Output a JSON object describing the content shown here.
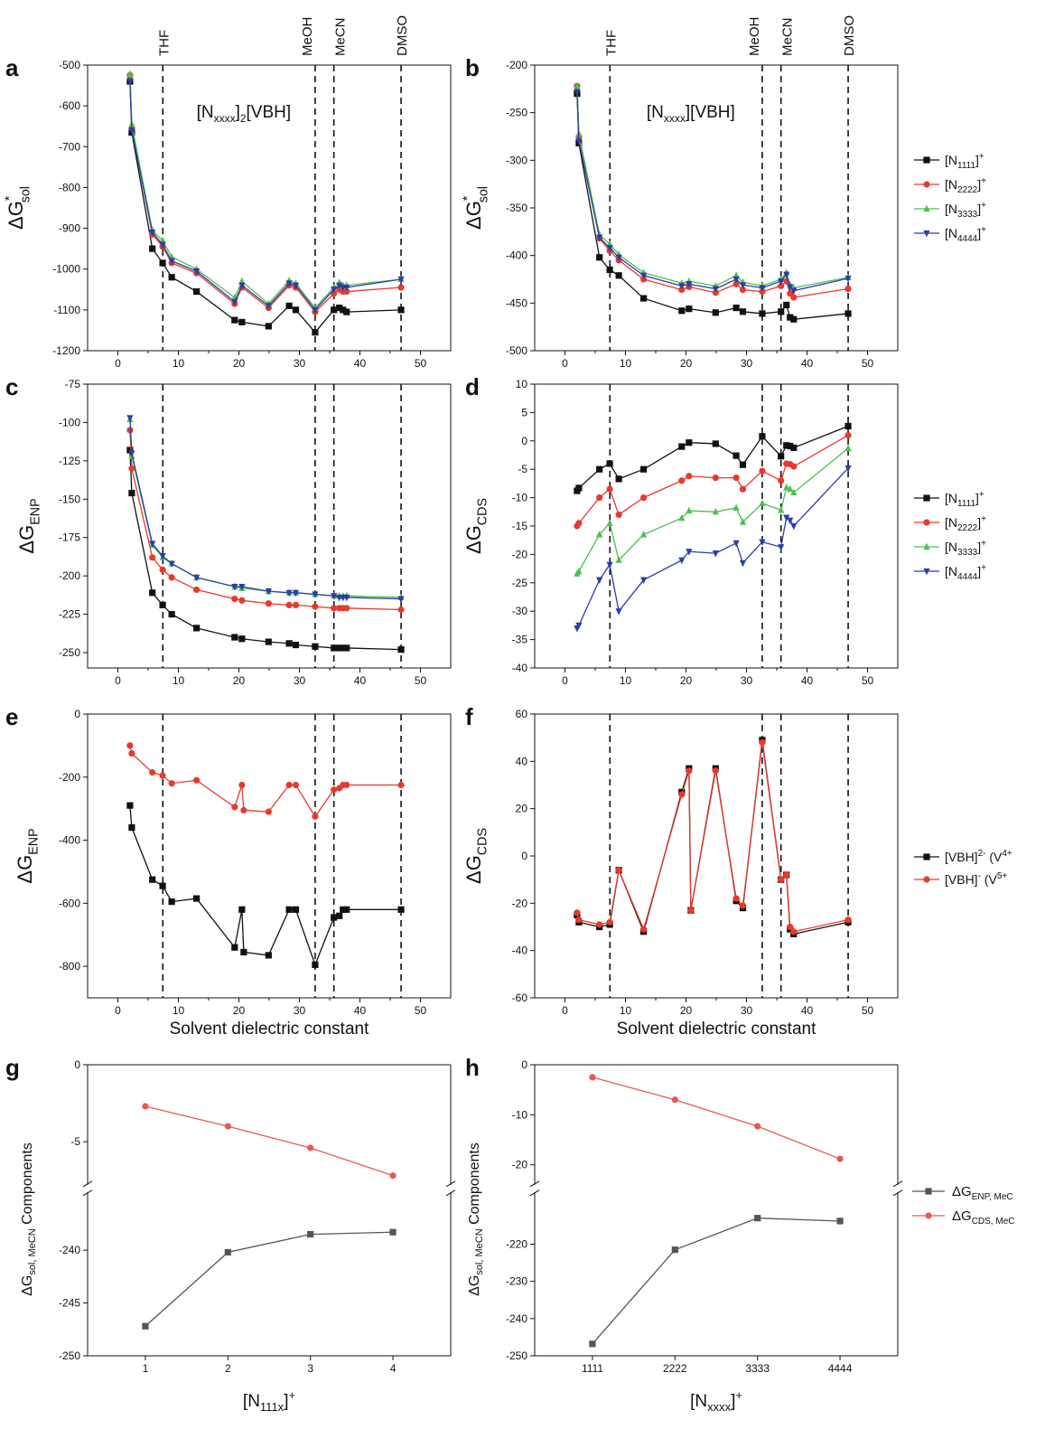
{
  "solvents": {
    "labels": [
      "THF",
      "MeOH",
      "MeCN",
      "DMSO"
    ],
    "eps": [
      7.43,
      32.6,
      35.7,
      46.8
    ]
  },
  "legends": {
    "cations": [
      "[N1111]+",
      "[N2222]+",
      "[N3333]+",
      "[N4444]+"
    ],
    "anions": [
      "[VBH]2- (V4+",
      "[VBH]- (V5+"
    ],
    "components": [
      "ΔGENP, MeC",
      "ΔGCDS, MeC"
    ]
  },
  "colors": {
    "black": "#111111",
    "red": "#e8392c",
    "green": "#4cc050",
    "blue": "#2b3ea6",
    "gray": "#555555",
    "salmon": "#e85a50"
  },
  "chart_data": [
    {
      "panel": "a",
      "type": "line",
      "annotation": "[Nxxxx]2[VBH]",
      "ylabel": "ΔG*sol",
      "xlim": [
        -5,
        55
      ],
      "ylim": [
        -1200,
        -500
      ],
      "xticks": [
        0,
        10,
        20,
        30,
        40,
        50
      ],
      "yticks": [
        -1200,
        -1100,
        -1000,
        -900,
        -800,
        -700,
        -600,
        -500
      ],
      "series": [
        {
          "name": "[N1111]+",
          "x": [
            2.0,
            2.3,
            5.7,
            7.4,
            8.9,
            13,
            19.3,
            20.5,
            24.9,
            28.3,
            29.4,
            32.6,
            35.7,
            36.6,
            37.2,
            37.8,
            46.8
          ],
          "y": [
            -540,
            -665,
            -950,
            -985,
            -1020,
            -1055,
            -1125,
            -1130,
            -1140,
            -1090,
            -1100,
            -1155,
            -1100,
            -1095,
            -1100,
            -1105,
            -1100
          ]
        },
        {
          "name": "[N2222]+",
          "x": [
            2.0,
            2.3,
            5.7,
            7.4,
            8.9,
            13,
            19.3,
            20.5,
            24.9,
            28.3,
            29.4,
            32.6,
            35.7,
            36.6,
            37.2,
            37.8,
            46.8
          ],
          "y": [
            -525,
            -655,
            -915,
            -945,
            -985,
            -1010,
            -1085,
            -1045,
            -1095,
            -1040,
            -1045,
            -1105,
            -1060,
            -1050,
            -1055,
            -1055,
            -1045
          ]
        },
        {
          "name": "[N3333]+",
          "x": [
            2.0,
            2.3,
            5.7,
            7.4,
            8.9,
            13,
            19.3,
            20.5,
            24.9,
            28.3,
            29.4,
            32.6,
            35.7,
            36.6,
            37.2,
            37.8,
            46.8
          ],
          "y": [
            -522,
            -645,
            -905,
            -930,
            -970,
            -1000,
            -1070,
            -1030,
            -1085,
            -1028,
            -1035,
            -1095,
            -1045,
            -1033,
            -1040,
            -1040,
            -1025
          ]
        },
        {
          "name": "[N4444]+",
          "x": [
            2.0,
            2.3,
            5.7,
            7.4,
            8.9,
            13,
            19.3,
            20.5,
            24.9,
            28.3,
            29.4,
            32.6,
            35.7,
            36.6,
            37.2,
            37.8,
            46.8
          ],
          "y": [
            -540,
            -660,
            -910,
            -940,
            -980,
            -1005,
            -1080,
            -1040,
            -1090,
            -1035,
            -1040,
            -1100,
            -1050,
            -1040,
            -1045,
            -1045,
            -1025
          ]
        }
      ]
    },
    {
      "panel": "b",
      "type": "line",
      "annotation": "[Nxxxx][VBH]",
      "ylabel": "ΔG*sol",
      "xlim": [
        -5,
        55
      ],
      "ylim": [
        -500,
        -200
      ],
      "xticks": [
        0,
        10,
        20,
        30,
        40,
        50
      ],
      "yticks": [
        -500,
        -450,
        -400,
        -350,
        -300,
        -250,
        -200
      ],
      "series": [
        {
          "name": "[N1111]+",
          "x": [
            2.0,
            2.3,
            5.7,
            7.4,
            8.9,
            13,
            19.3,
            20.5,
            24.9,
            28.3,
            29.4,
            32.6,
            35.7,
            36.6,
            37.2,
            37.8,
            46.8
          ],
          "y": [
            -230,
            -282,
            -402,
            -415,
            -421,
            -445,
            -458,
            -456,
            -460,
            -455,
            -459,
            -461,
            -459,
            -452,
            -465,
            -467,
            -461
          ]
        },
        {
          "name": "[N2222]+",
          "x": [
            2.0,
            2.3,
            5.7,
            7.4,
            8.9,
            13,
            19.3,
            20.5,
            24.9,
            28.3,
            29.4,
            32.6,
            35.7,
            36.6,
            37.2,
            37.8,
            46.8
          ],
          "y": [
            -222,
            -275,
            -382,
            -395,
            -405,
            -425,
            -436,
            -433,
            -439,
            -430,
            -436,
            -438,
            -432,
            -427,
            -440,
            -444,
            -435
          ]
        },
        {
          "name": "[N3333]+",
          "x": [
            2.0,
            2.3,
            5.7,
            7.4,
            8.9,
            13,
            19.3,
            20.5,
            24.9,
            28.3,
            29.4,
            32.6,
            35.7,
            36.6,
            37.2,
            37.8,
            46.8
          ],
          "y": [
            -222,
            -272,
            -378,
            -388,
            -399,
            -418,
            -429,
            -427,
            -432,
            -421,
            -428,
            -432,
            -425,
            -418,
            -431,
            -434,
            -423
          ]
        },
        {
          "name": "[N4444]+",
          "x": [
            2.0,
            2.3,
            5.7,
            7.4,
            8.9,
            13,
            19.3,
            20.5,
            24.9,
            28.3,
            29.4,
            32.6,
            35.7,
            36.6,
            37.2,
            37.8,
            46.8
          ],
          "y": [
            -228,
            -280,
            -381,
            -392,
            -402,
            -421,
            -432,
            -430,
            -435,
            -425,
            -431,
            -434,
            -427,
            -420,
            -433,
            -437,
            -424
          ]
        }
      ]
    },
    {
      "panel": "c",
      "type": "line",
      "ylabel": "ΔGENP",
      "xlim": [
        -5,
        55
      ],
      "ylim": [
        -260,
        -75
      ],
      "xticks": [
        0,
        10,
        20,
        30,
        40,
        50
      ],
      "yticks": [
        -250,
        -225,
        -200,
        -175,
        -150,
        -125,
        -100,
        -75
      ],
      "series": [
        {
          "name": "[N1111]+",
          "x": [
            2.0,
            2.3,
            5.7,
            7.4,
            8.9,
            13,
            19.3,
            20.5,
            24.9,
            28.3,
            29.4,
            32.6,
            35.7,
            36.6,
            37.2,
            37.8,
            46.8
          ],
          "y": [
            -118,
            -146,
            -211,
            -219,
            -225,
            -234,
            -240,
            -241,
            -243,
            -244,
            -245,
            -246,
            -247,
            -247,
            -247,
            -247,
            -248
          ]
        },
        {
          "name": "[N2222]+",
          "x": [
            2.0,
            2.3,
            5.7,
            7.4,
            8.9,
            13,
            19.3,
            20.5,
            24.9,
            28.3,
            29.4,
            32.6,
            35.7,
            36.6,
            37.2,
            37.8,
            46.8
          ],
          "y": [
            -105,
            -130,
            -188,
            -196,
            -201,
            -209,
            -215,
            -216,
            -218,
            -219,
            -219,
            -220,
            -221,
            -221,
            -221,
            -221,
            -222
          ]
        },
        {
          "name": "[N3333]+",
          "x": [
            2.0,
            2.3,
            5.7,
            7.4,
            8.9,
            13,
            19.3,
            20.5,
            24.9,
            28.3,
            29.4,
            32.6,
            35.7,
            36.6,
            37.2,
            37.8,
            46.8
          ],
          "y": [
            -98,
            -122,
            -180,
            -188,
            -192,
            -201,
            -207,
            -208,
            -210,
            -211,
            -211,
            -212,
            -213,
            -213,
            -213,
            -213,
            -214
          ]
        },
        {
          "name": "[N4444]+",
          "x": [
            2.0,
            2.3,
            5.7,
            7.4,
            8.9,
            13,
            19.3,
            20.5,
            24.9,
            28.3,
            29.4,
            32.6,
            35.7,
            36.6,
            37.2,
            37.8,
            46.8
          ],
          "y": [
            -97,
            -120,
            -179,
            -187,
            -192,
            -201,
            -207,
            -207,
            -210,
            -211,
            -211,
            -212,
            -213,
            -214,
            -214,
            -214,
            -215
          ]
        }
      ]
    },
    {
      "panel": "d",
      "type": "line",
      "ylabel": "ΔGCDS",
      "xlim": [
        -5,
        55
      ],
      "ylim": [
        -40,
        10
      ],
      "xticks": [
        0,
        10,
        20,
        30,
        40,
        50
      ],
      "yticks": [
        -40,
        -35,
        -30,
        -25,
        -20,
        -15,
        -10,
        -5,
        0,
        5,
        10
      ],
      "series": [
        {
          "name": "[N1111]+",
          "x": [
            2.0,
            2.3,
            5.7,
            7.4,
            8.9,
            13,
            19.3,
            20.5,
            24.9,
            28.3,
            29.4,
            32.6,
            35.7,
            36.6,
            37.2,
            37.8,
            46.8
          ],
          "y": [
            -8.8,
            -8.3,
            -5.0,
            -4.0,
            -6.7,
            -5.0,
            -1.0,
            -0.3,
            -0.5,
            -2.6,
            -4.2,
            0.8,
            -2.7,
            -0.8,
            -0.9,
            -1.2,
            2.6
          ]
        },
        {
          "name": "[N2222]+",
          "x": [
            2.0,
            2.3,
            5.7,
            7.4,
            8.9,
            13,
            19.3,
            20.5,
            24.9,
            28.3,
            29.4,
            32.6,
            35.7,
            36.6,
            37.2,
            37.8,
            46.8
          ],
          "y": [
            -15.0,
            -14.5,
            -10.0,
            -8.5,
            -13.0,
            -10.0,
            -7.0,
            -6.2,
            -6.5,
            -6.5,
            -8.5,
            -5.3,
            -7.0,
            -4.0,
            -4.1,
            -4.5,
            1.0
          ]
        },
        {
          "name": "[N3333]+",
          "x": [
            2.0,
            2.3,
            5.7,
            7.4,
            8.9,
            13,
            19.3,
            20.5,
            24.9,
            28.3,
            29.4,
            32.6,
            35.7,
            36.6,
            37.2,
            37.8,
            46.8
          ],
          "y": [
            -23.4,
            -23.0,
            -16.5,
            -14.5,
            -21.0,
            -16.5,
            -13.6,
            -12.3,
            -12.5,
            -11.8,
            -14.3,
            -11.0,
            -12.2,
            -8.2,
            -8.5,
            -9.1,
            -1.3
          ]
        },
        {
          "name": "[N4444]+",
          "x": [
            2.0,
            2.3,
            5.7,
            7.4,
            8.9,
            13,
            19.3,
            20.5,
            24.9,
            28.3,
            29.4,
            32.6,
            35.7,
            36.6,
            37.2,
            37.8,
            46.8
          ],
          "y": [
            -33.0,
            -32.5,
            -24.5,
            -21.8,
            -30.0,
            -24.5,
            -21.0,
            -19.5,
            -19.8,
            -18.0,
            -21.5,
            -17.8,
            -18.7,
            -13.5,
            -14.0,
            -15.0,
            -4.8
          ]
        }
      ]
    },
    {
      "panel": "e",
      "type": "line",
      "ylabel": "ΔGENP",
      "xlabel": "Solvent dielectric constant",
      "xlim": [
        -5,
        55
      ],
      "ylim": [
        -900,
        0
      ],
      "xticks": [
        0,
        10,
        20,
        30,
        40,
        50
      ],
      "yticks": [
        -800,
        -600,
        -400,
        -200,
        0
      ],
      "series": [
        {
          "name": "[VBH]2- (V4+",
          "x": [
            2.0,
            2.3,
            5.7,
            7.4,
            8.9,
            13,
            19.3,
            20.5,
            20.8,
            24.9,
            28.3,
            29.4,
            32.6,
            35.7,
            36.6,
            37.2,
            37.8,
            46.8
          ],
          "y": [
            -290,
            -360,
            -525,
            -545,
            -595,
            -585,
            -740,
            -620,
            -755,
            -765,
            -620,
            -620,
            -795,
            -645,
            -640,
            -620,
            -620,
            -620
          ]
        },
        {
          "name": "[VBH]- (V5+",
          "x": [
            2.0,
            2.3,
            5.7,
            7.4,
            8.9,
            13,
            19.3,
            20.5,
            20.8,
            24.9,
            28.3,
            29.4,
            32.6,
            35.7,
            36.6,
            37.2,
            37.8,
            46.8
          ],
          "y": [
            -100,
            -125,
            -185,
            -195,
            -220,
            -210,
            -295,
            -225,
            -305,
            -310,
            -225,
            -225,
            -325,
            -240,
            -235,
            -225,
            -225,
            -225
          ]
        }
      ]
    },
    {
      "panel": "f",
      "type": "line",
      "ylabel": "ΔGCDS",
      "xlabel": "Solvent dielectric constant",
      "xlim": [
        -5,
        55
      ],
      "ylim": [
        -60,
        60
      ],
      "xticks": [
        0,
        10,
        20,
        30,
        40,
        50
      ],
      "yticks": [
        -60,
        -40,
        -20,
        0,
        20,
        40,
        60
      ],
      "series": [
        {
          "name": "[VBH]2- (V4+",
          "x": [
            2.0,
            2.3,
            5.7,
            7.4,
            8.9,
            13,
            19.3,
            20.5,
            20.8,
            24.9,
            28.3,
            29.4,
            32.6,
            35.7,
            36.6,
            37.2,
            37.8,
            46.8
          ],
          "y": [
            -25,
            -28,
            -30,
            -29,
            -6,
            -32,
            27,
            37,
            -23,
            37,
            -19,
            -22,
            49,
            -10,
            -8,
            -31,
            -33,
            -28
          ]
        },
        {
          "name": "[VBH]- (V5+",
          "x": [
            2.0,
            2.3,
            5.7,
            7.4,
            8.9,
            13,
            19.3,
            20.5,
            20.8,
            24.9,
            28.3,
            29.4,
            32.6,
            35.7,
            36.6,
            37.2,
            37.8,
            46.8
          ],
          "y": [
            -24,
            -27,
            -29,
            -28,
            -6,
            -31,
            26,
            36,
            -23,
            36,
            -18,
            -21,
            48,
            -10,
            -8,
            -30,
            -32,
            -27
          ]
        }
      ]
    },
    {
      "panel": "g",
      "type": "line",
      "ylabel": "ΔGsol, MeCN Components",
      "xlabel": "[N111x]+",
      "xlim": [
        0.3,
        4.7
      ],
      "categories": [
        "1",
        "2",
        "3",
        "4"
      ],
      "upper_ylim": [
        -7.8,
        0
      ],
      "upper_yticks": [
        0,
        -5
      ],
      "lower_ylim": [
        -250,
        -234.5
      ],
      "lower_yticks": [
        -240,
        -245,
        -250
      ],
      "series": [
        {
          "name": "ΔGENP, MeC",
          "values": [
            -247.2,
            -240.2,
            -238.5,
            -238.3
          ]
        },
        {
          "name": "ΔGCDS, MeC",
          "values": [
            -2.7,
            -4.0,
            -5.4,
            -7.2
          ]
        }
      ]
    },
    {
      "panel": "h",
      "type": "line",
      "ylabel": "ΔGsol, MeCN Components",
      "xlabel": "[Nxxxx]+",
      "xlim": [
        0.3,
        4.7
      ],
      "categories": [
        "1111",
        "2222",
        "3333",
        "4444"
      ],
      "upper_ylim": [
        -24,
        0
      ],
      "upper_yticks": [
        0,
        -10,
        -20
      ],
      "lower_ylim": [
        -250,
        -206
      ],
      "lower_yticks": [
        -220,
        -230,
        -240,
        -250
      ],
      "series": [
        {
          "name": "ΔGENP, MeC",
          "values": [
            -246.8,
            -221.5,
            -213.0,
            -213.8
          ]
        },
        {
          "name": "ΔGCDS, MeC",
          "values": [
            -2.5,
            -7.0,
            -12.3,
            -18.8
          ]
        }
      ]
    }
  ]
}
